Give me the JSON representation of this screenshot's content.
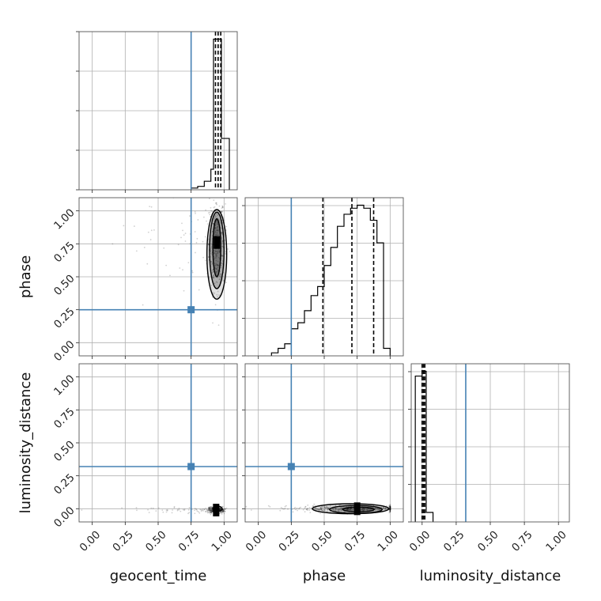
{
  "chart_data": {
    "type": "corner",
    "parameters": [
      "geocent_time",
      "phase",
      "luminosity_distance"
    ],
    "axis_range": [
      -0.1,
      1.1
    ],
    "ticks": [
      0.0,
      0.25,
      0.5,
      0.75,
      1.0
    ],
    "tick_labels": [
      "0.00",
      "0.25",
      "0.50",
      "0.75",
      "1.00"
    ],
    "grid": true,
    "truth": {
      "geocent_time": 0.75,
      "phase": 0.25,
      "luminosity_distance": 0.32
    },
    "truth_color": "#4682b4",
    "line_color": "#000000",
    "histograms": [
      {
        "param": "geocent_time",
        "bin_edges": [
          0.75,
          0.8,
          0.85,
          0.9,
          0.92,
          0.94,
          0.96,
          0.98,
          1.0,
          1.04
        ],
        "counts": [
          0.01,
          0.02,
          0.05,
          0.12,
          0.88,
          0.88,
          0.88,
          0.3,
          0.3
        ],
        "quantiles": [
          0.935,
          0.955,
          0.975
        ]
      },
      {
        "param": "phase",
        "bin_edges": [
          0.1,
          0.15,
          0.2,
          0.25,
          0.3,
          0.35,
          0.4,
          0.45,
          0.5,
          0.55,
          0.6,
          0.65,
          0.7,
          0.75,
          0.8,
          0.85,
          0.9,
          0.95,
          1.0
        ],
        "counts": [
          0.02,
          0.05,
          0.08,
          0.18,
          0.22,
          0.3,
          0.4,
          0.46,
          0.6,
          0.72,
          0.86,
          0.94,
          0.98,
          1.0,
          0.98,
          0.9,
          0.75,
          0.05
        ],
        "quantiles": [
          0.49,
          0.71,
          0.875
        ]
      },
      {
        "param": "luminosity_distance",
        "bin_edges": [
          -0.05,
          0.0,
          0.03,
          0.08
        ],
        "counts": [
          0.92,
          0.95,
          0.06
        ],
        "quantiles": [
          0.0,
          0.01,
          0.02
        ]
      }
    ],
    "joint": [
      {
        "x": "geocent_time",
        "y": "phase",
        "core": [
          0.945,
          0.76
        ],
        "contours": [
          {
            "cx": 0.945,
            "cy": 0.72,
            "rx": 0.03,
            "ry": 0.22
          },
          {
            "cx": 0.945,
            "cy": 0.7,
            "rx": 0.055,
            "ry": 0.29
          },
          {
            "cx": 0.945,
            "cy": 0.67,
            "rx": 0.075,
            "ry": 0.34
          }
        ]
      },
      {
        "x": "geocent_time",
        "y": "luminosity_distance",
        "core": [
          0.94,
          -0.01
        ],
        "contours": [
          {
            "cx": 0.95,
            "cy": 0.0,
            "rx": 0.035,
            "ry": 0.02
          }
        ]
      },
      {
        "x": "phase",
        "y": "luminosity_distance",
        "core": [
          0.75,
          0.0
        ],
        "contours": [
          {
            "cx": 0.76,
            "cy": -0.005,
            "rx": 0.12,
            "ry": 0.018
          },
          {
            "cx": 0.74,
            "cy": -0.005,
            "rx": 0.2,
            "ry": 0.03
          },
          {
            "cx": 0.7,
            "cy": 0.0,
            "rx": 0.29,
            "ry": 0.038
          }
        ]
      }
    ]
  }
}
